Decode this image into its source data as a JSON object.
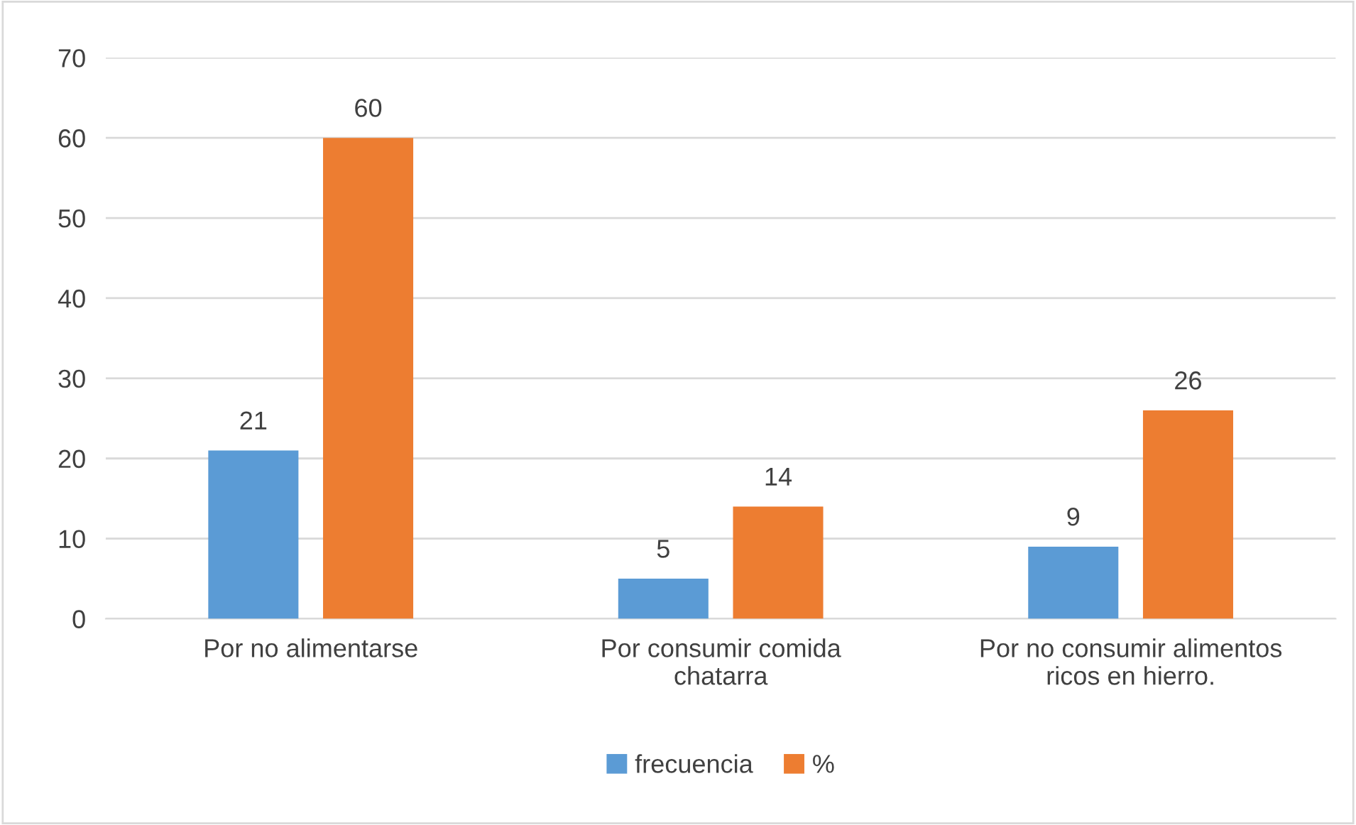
{
  "chart_data": {
    "type": "bar",
    "categories": [
      "Por no alimentarse",
      "Por consumir comida\nchatarra",
      "Por no consumir alimentos\nricos en hierro."
    ],
    "series": [
      {
        "name": "frecuencia",
        "color": "#5b9bd5",
        "values": [
          21,
          5,
          9
        ]
      },
      {
        "name": "%",
        "color": "#ed7d31",
        "values": [
          60,
          14,
          26
        ]
      }
    ],
    "ylim": [
      0,
      70
    ],
    "yticks": [
      0,
      10,
      20,
      30,
      40,
      50,
      60,
      70
    ],
    "grid": "y",
    "legend": "bottom",
    "data_labels": true
  }
}
